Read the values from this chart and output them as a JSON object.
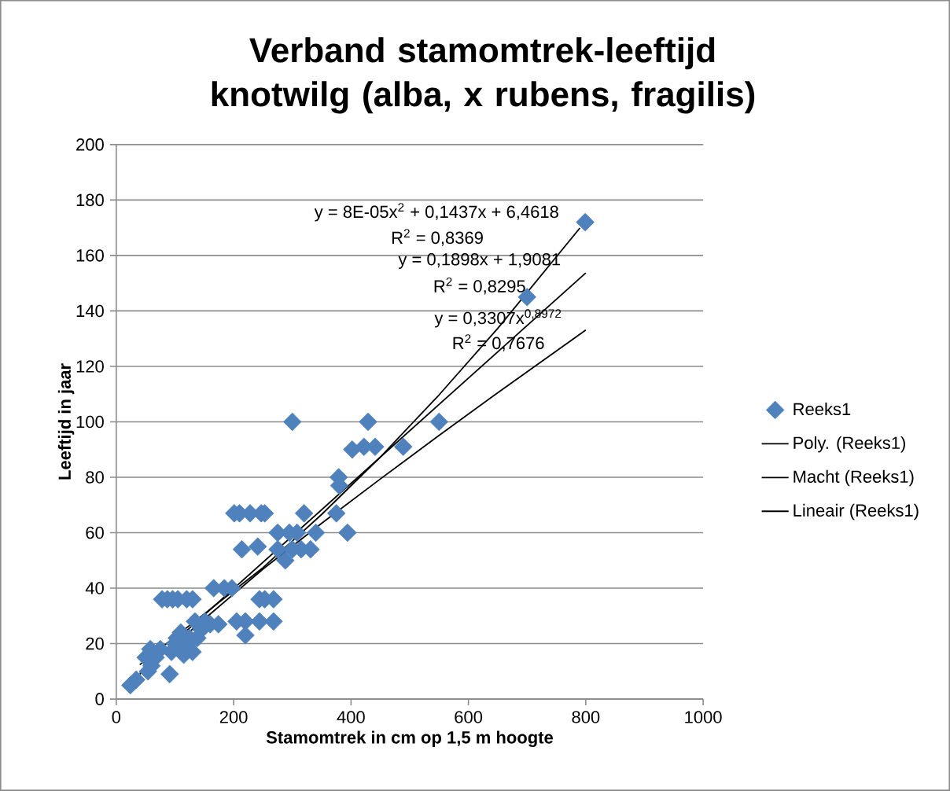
{
  "chart_data": {
    "type": "scatter",
    "title": "Verband stamomtrek-leeftijd knotwilg (alba, x rubens, fragilis)",
    "xlabel": "Stamomtrek in cm op 1,5 m hoogte",
    "ylabel": "Leeftijd in jaar",
    "xlim": [
      0,
      1000
    ],
    "xticks": [
      0,
      200,
      400,
      600,
      800,
      1000
    ],
    "ylim": [
      0,
      200
    ],
    "yticks": [
      0,
      20,
      40,
      60,
      80,
      100,
      120,
      140,
      160,
      180,
      200
    ],
    "grid": "y",
    "legend": "right",
    "annotations": [
      "y = 8E-05x$^{2}$ + 0,1437x + 6,4618",
      "R$^{2}$ = 0,8369",
      "y = 0,1898x + 1,9081",
      "R$^{2}$ = 0,8295",
      "y = 0,3307x$^{0,8972}$",
      "R$^{2}$ = 0,7676"
    ],
    "series": [
      {
        "name": "Reeks1",
        "marker": "diamond",
        "color": "#4f81bd",
        "x": [
          24,
          34,
          54,
          91,
          58,
          67,
          50,
          103,
          94,
          111,
          130,
          121,
          138,
          134,
          151,
          174,
          205,
          78,
          87,
          96,
          105,
          120,
          130,
          166,
          184,
          197,
          201,
          210,
          228,
          247,
          253,
          320,
          375,
          275,
          295,
          308,
          340,
          394,
          214,
          241,
          275,
          300,
          315,
          331,
          288,
          244,
          253,
          268,
          160,
          220,
          244,
          268,
          220,
          300,
          429,
          550,
          402,
          422,
          441,
          489,
          379,
          380,
          799,
          700,
          115,
          125,
          145,
          60,
          75,
          100,
          110
        ],
        "values": [
          5,
          7,
          10,
          9,
          18,
          15,
          15,
          22,
          17,
          17,
          17,
          20,
          22,
          28,
          28,
          27,
          28,
          36,
          36,
          36,
          36,
          36,
          36,
          40,
          40,
          40,
          67,
          67,
          67,
          67,
          67,
          67,
          67,
          60,
          60,
          60,
          60,
          60,
          54,
          55,
          54,
          54,
          54,
          54,
          50,
          36,
          36,
          36,
          27,
          28,
          28,
          28,
          23,
          100,
          100,
          100,
          90,
          91,
          91,
          91,
          80,
          77,
          172,
          145,
          16,
          22,
          25,
          12,
          18,
          20,
          24
        ]
      },
      {
        "name": "Poly. (Reeks1)",
        "type": "line",
        "marker": "none",
        "color": "#000000",
        "x": [
          40,
          250,
          350,
          450,
          550,
          650,
          790
        ],
        "values": [
          12.4,
          47.4,
          66.6,
          87.3,
          109.7,
          133.7,
          169.9
        ]
      },
      {
        "name": "Macht (Reeks1)",
        "type": "line",
        "marker": "none",
        "color": "#000000",
        "x": [
          40,
          250,
          350,
          450,
          550,
          650,
          800
        ],
        "values": [
          9.0,
          46.9,
          63.4,
          79.4,
          95.1,
          110.5,
          133.1
        ]
      },
      {
        "name": "Lineair (Reeks1)",
        "type": "line",
        "marker": "none",
        "color": "#000000",
        "x": [
          40,
          800
        ],
        "values": [
          9.5,
          153.7
        ]
      }
    ]
  }
}
